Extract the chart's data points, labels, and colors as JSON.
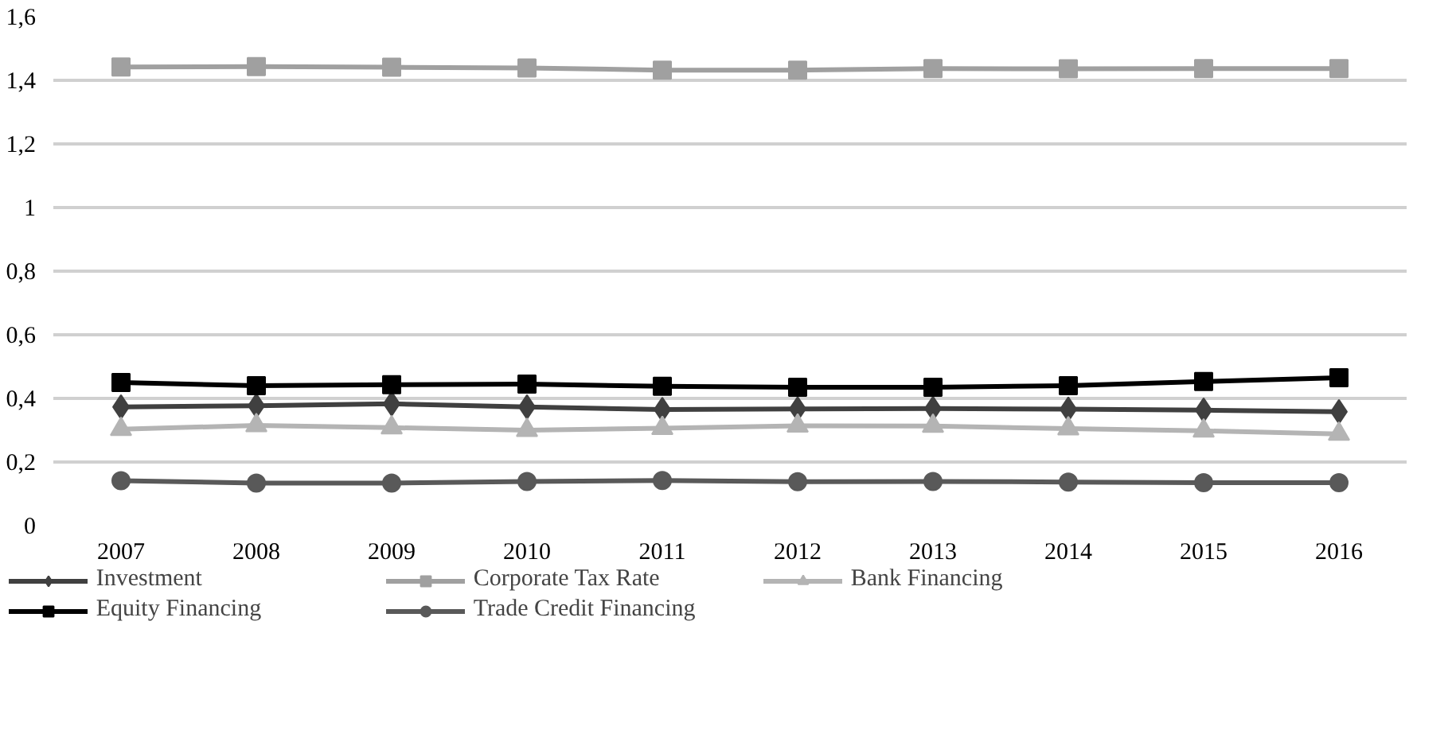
{
  "chart_data": {
    "type": "line",
    "categories": [
      "2007",
      "2008",
      "2009",
      "2010",
      "2011",
      "2012",
      "2013",
      "2014",
      "2015",
      "2016"
    ],
    "series": [
      {
        "name": "Investment",
        "color": "#404040",
        "marker": "diamond",
        "values": [
          0.373,
          0.377,
          0.383,
          0.373,
          0.365,
          0.367,
          0.368,
          0.366,
          0.363,
          0.358
        ]
      },
      {
        "name": "Corporate Tax Rate",
        "color": "#a0a0a0",
        "marker": "square",
        "values": [
          1.442,
          1.443,
          1.441,
          1.439,
          1.432,
          1.432,
          1.437,
          1.436,
          1.437,
          1.437
        ]
      },
      {
        "name": "Bank Financing",
        "color": "#b4b4b4",
        "marker": "triangle",
        "values": [
          0.303,
          0.315,
          0.308,
          0.3,
          0.306,
          0.314,
          0.313,
          0.305,
          0.298,
          0.288
        ]
      },
      {
        "name": "Equity Financing",
        "color": "#000000",
        "marker": "square",
        "values": [
          0.45,
          0.44,
          0.443,
          0.445,
          0.438,
          0.435,
          0.435,
          0.44,
          0.453,
          0.465
        ]
      },
      {
        "name": "Trade Credit Financing",
        "color": "#595959",
        "marker": "circle",
        "values": [
          0.141,
          0.134,
          0.134,
          0.139,
          0.142,
          0.138,
          0.139,
          0.137,
          0.135,
          0.135
        ]
      }
    ],
    "ylim": [
      0,
      1.6
    ],
    "yticks": [
      0,
      {
        "value": 0.2,
        "label": "0,2"
      },
      {
        "value": 0.4,
        "label": "0,4"
      },
      {
        "value": 0.6,
        "label": "0,6"
      },
      {
        "value": 0.8,
        "label": "0,8"
      },
      1,
      {
        "value": 1.2,
        "label": "1,2"
      },
      {
        "value": 1.4,
        "label": "1,4"
      },
      {
        "value": 1.6,
        "label": "1,6"
      }
    ],
    "grid": "y",
    "legend": "bottom",
    "line_style": "solid"
  }
}
